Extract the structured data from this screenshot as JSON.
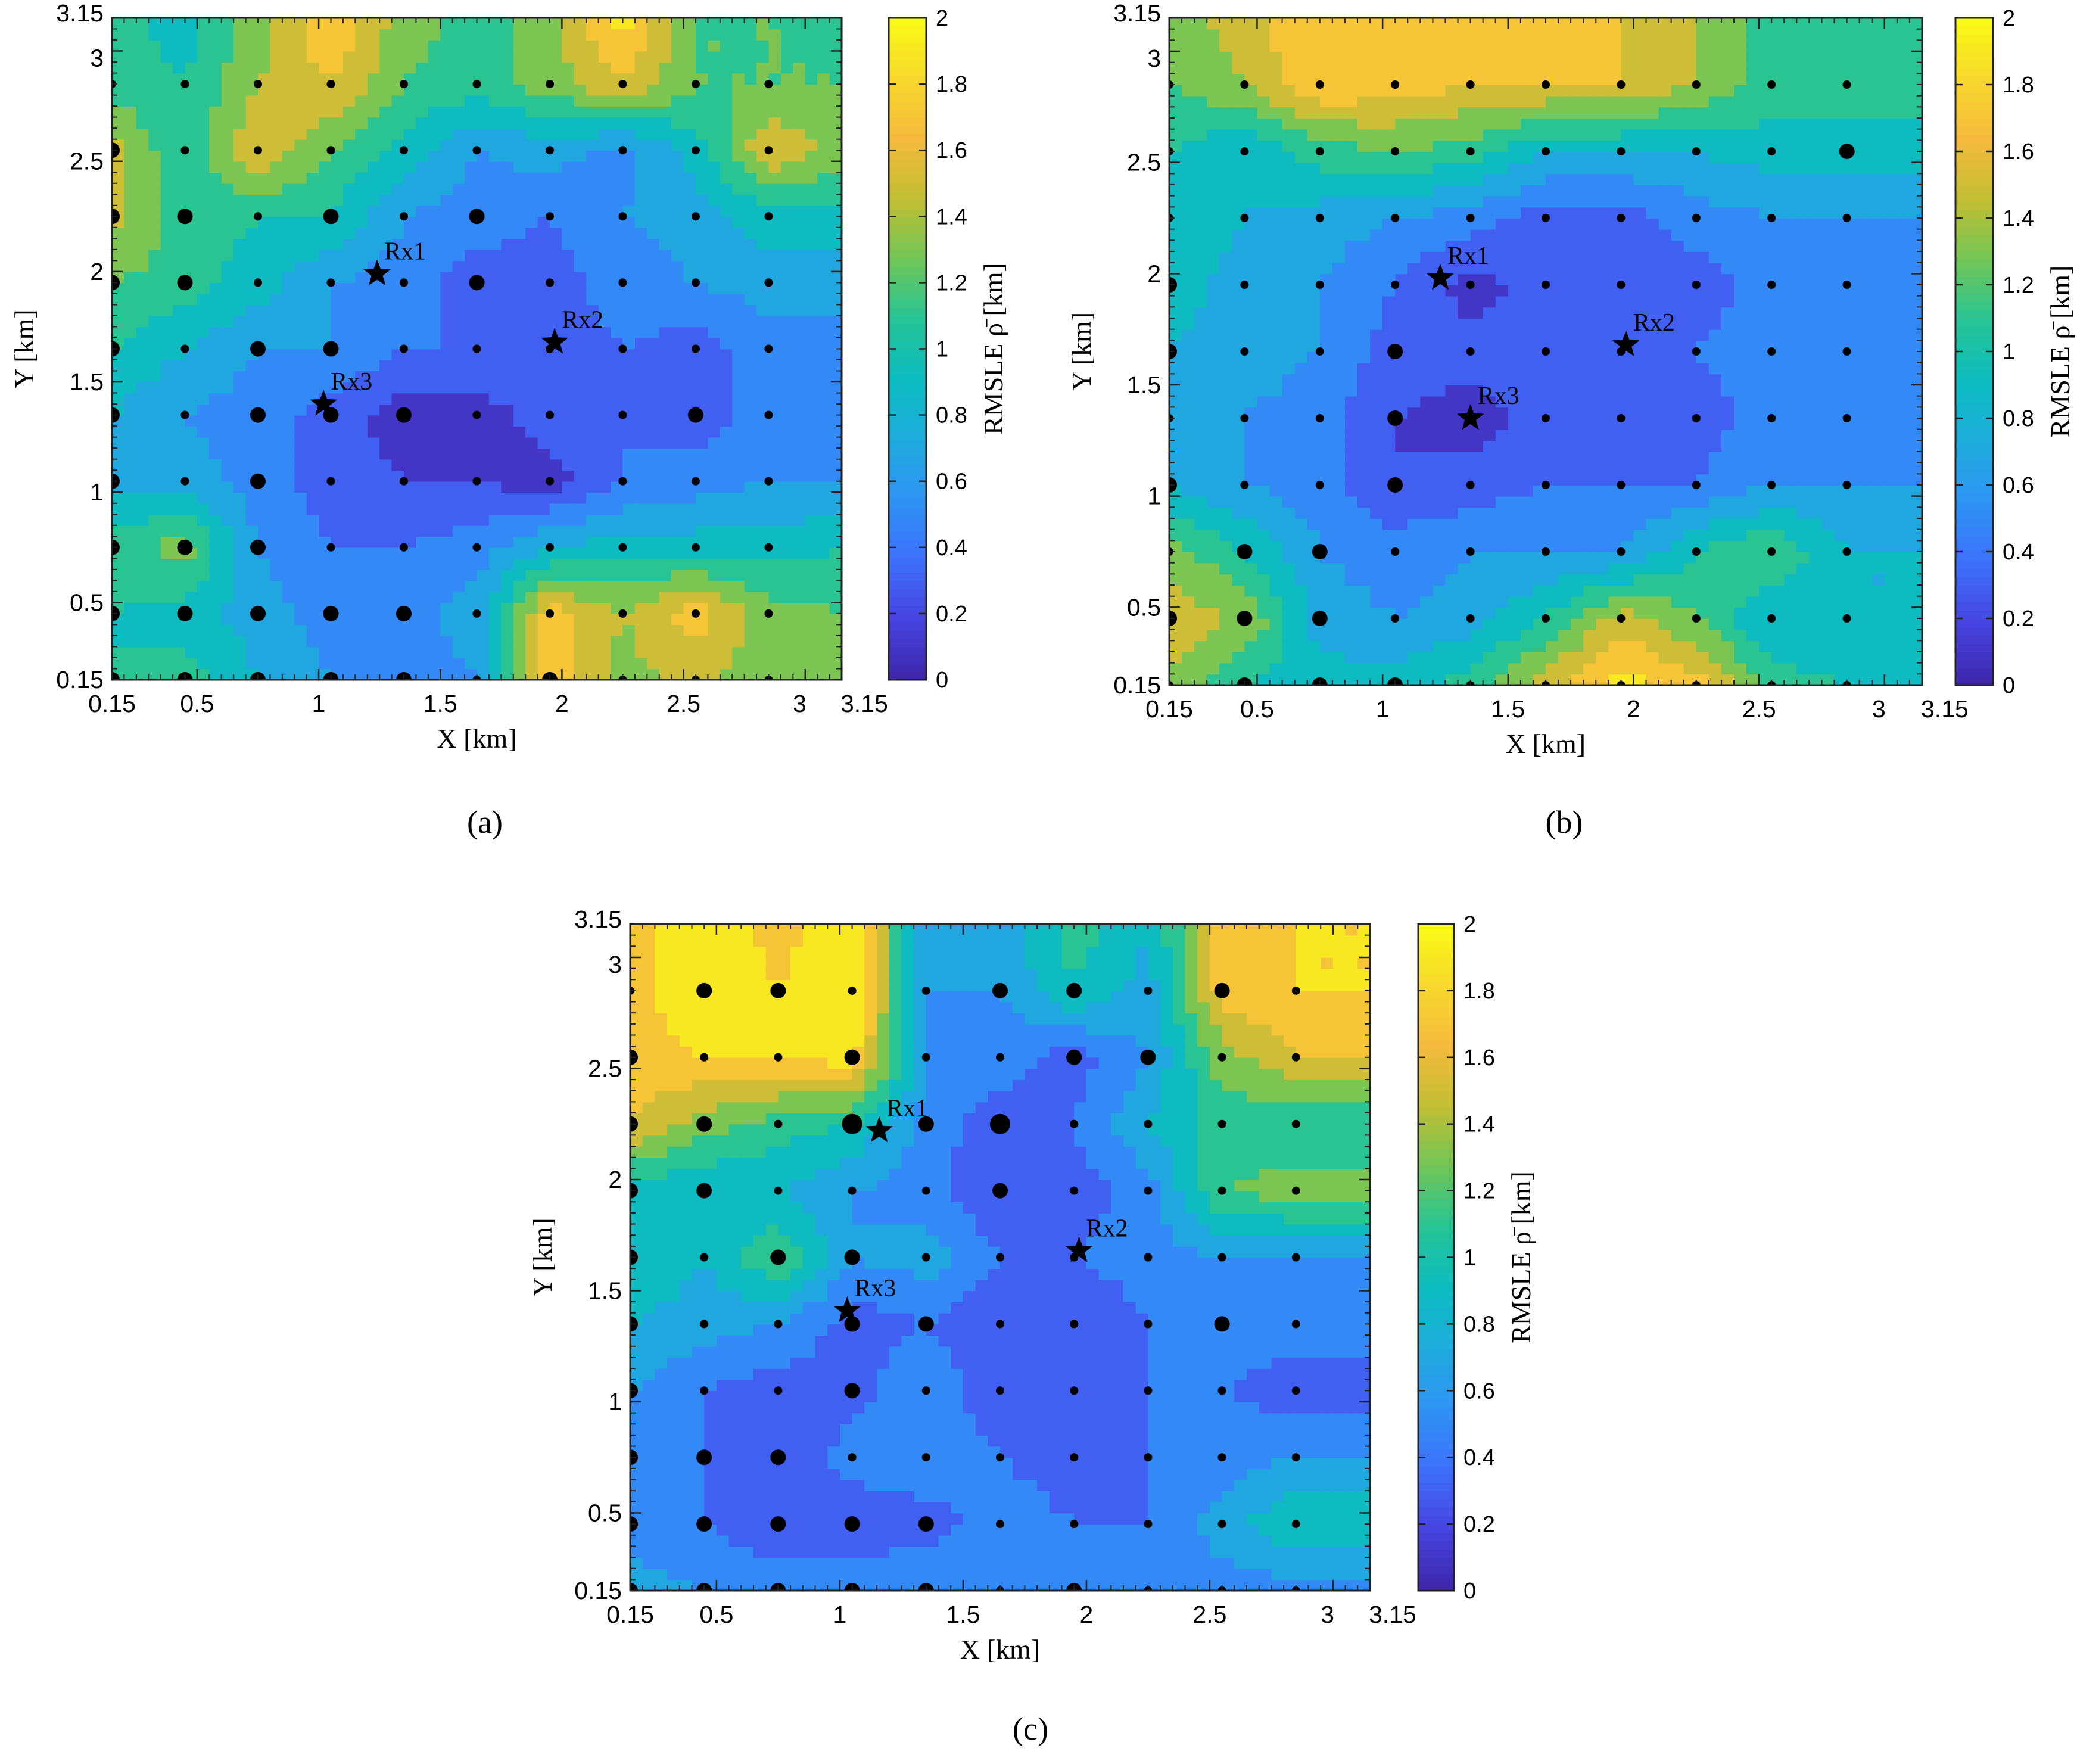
{
  "colormap": [
    "#3e26a8",
    "#4743e0",
    "#3e6ffb",
    "#2f93f4",
    "#1fabdd",
    "#0cbcbf",
    "#26c496",
    "#71c658",
    "#c1be33",
    "#f5ba3d",
    "#f7d82d",
    "#f9fb15"
  ],
  "chart_data": [
    {
      "type": "heatmap",
      "panel_caption": "(a)",
      "xlabel": "X [km]",
      "ylabel": "Y [km]",
      "colorbar_label": "RMSLE ρ̄ [km]",
      "xlim": [
        0.15,
        3.15
      ],
      "ylim": [
        0.15,
        3.15
      ],
      "clim": [
        0,
        2
      ],
      "xticks": [
        0.15,
        0.5,
        1,
        1.5,
        2,
        2.5,
        3,
        3.15
      ],
      "xtick_labels": [
        "0.15",
        "0.5",
        "1",
        "1.5",
        "2",
        "2.5",
        "3",
        "3.15"
      ],
      "yticks": [
        0.15,
        0.5,
        1,
        1.5,
        2,
        2.5,
        3,
        3.15
      ],
      "ytick_labels": [
        "0.15",
        "0.5",
        "1",
        "1.5",
        "2",
        "2.5",
        "3",
        "3.15"
      ],
      "cbar_ticks": [
        0,
        0.2,
        0.4,
        0.6,
        0.8,
        1,
        1.2,
        1.4,
        1.6,
        1.8,
        2
      ],
      "cbar_tick_labels": [
        "0",
        "0.2",
        "0.4",
        "0.6",
        "0.8",
        "1",
        "1.2",
        "1.4",
        "1.6",
        "1.8",
        "2"
      ],
      "grid_x": [
        0.15,
        0.45,
        0.75,
        1.05,
        1.35,
        1.65,
        1.95,
        2.25,
        2.55,
        2.85,
        3.15
      ],
      "grid_y": [
        0.15,
        0.45,
        0.75,
        1.05,
        1.35,
        1.65,
        1.95,
        2.25,
        2.55,
        2.85,
        3.15
      ],
      "values": [
        [
          1.0,
          1.1,
          0.8,
          0.6,
          0.5,
          0.6,
          1.7,
          1.3,
          1.5,
          1.2,
          1.2
        ],
        [
          1.0,
          0.9,
          0.7,
          0.5,
          0.5,
          0.7,
          1.7,
          1.4,
          1.7,
          1.3,
          1.2
        ],
        [
          1.1,
          1.3,
          0.6,
          0.4,
          0.4,
          0.5,
          0.8,
          0.9,
          0.9,
          0.9,
          1.0
        ],
        [
          0.7,
          0.7,
          0.5,
          0.3,
          0.2,
          0.2,
          0.1,
          0.4,
          0.5,
          0.6,
          0.6
        ],
        [
          0.8,
          0.6,
          0.5,
          0.3,
          0.1,
          0.1,
          0.3,
          0.4,
          0.3,
          0.5,
          0.5
        ],
        [
          1.0,
          0.8,
          0.6,
          0.6,
          0.4,
          0.4,
          0.3,
          0.4,
          0.3,
          0.5,
          0.5
        ],
        [
          1.2,
          1.1,
          0.9,
          0.6,
          0.5,
          0.3,
          0.3,
          0.5,
          0.6,
          0.7,
          0.7
        ],
        [
          1.5,
          1.1,
          1.0,
          1.0,
          0.6,
          0.5,
          0.4,
          0.6,
          0.7,
          0.9,
          0.9
        ],
        [
          1.5,
          1.0,
          1.6,
          1.2,
          0.9,
          0.6,
          0.7,
          0.5,
          0.9,
          1.6,
          1.3
        ],
        [
          1.1,
          1.0,
          1.4,
          1.6,
          1.2,
          1.1,
          1.3,
          1.6,
          1.2,
          1.2,
          1.2
        ],
        [
          1.1,
          0.9,
          1.3,
          1.8,
          1.3,
          1.1,
          1.3,
          1.9,
          1.2,
          1.2,
          1.2
        ]
      ],
      "receivers": [
        {
          "label": "Rx1",
          "x": 1.24,
          "y": 1.99
        },
        {
          "label": "Rx2",
          "x": 1.97,
          "y": 1.68
        },
        {
          "label": "Rx3",
          "x": 1.02,
          "y": 1.4
        }
      ],
      "sample_points": {
        "x": [
          0.15,
          0.45,
          0.75,
          1.05,
          1.35,
          1.65,
          1.95,
          2.25,
          2.55,
          2.85
        ],
        "y": [
          0.15,
          0.45,
          0.75,
          1.05,
          1.35,
          1.65,
          1.95,
          2.25,
          2.55,
          2.85
        ],
        "size_class": [
          [
            2,
            2,
            2,
            2,
            2,
            1,
            2,
            1,
            1,
            1
          ],
          [
            2,
            2,
            2,
            2,
            2,
            1,
            1,
            1,
            1,
            1
          ],
          [
            2,
            2,
            2,
            1,
            1,
            1,
            1,
            1,
            1,
            1
          ],
          [
            2,
            1,
            2,
            1,
            1,
            1,
            1,
            1,
            1,
            1
          ],
          [
            2,
            1,
            2,
            2,
            2,
            1,
            1,
            1,
            2,
            1
          ],
          [
            2,
            1,
            2,
            2,
            1,
            1,
            1,
            1,
            1,
            1
          ],
          [
            2,
            2,
            1,
            1,
            1,
            2,
            1,
            1,
            1,
            1
          ],
          [
            2,
            2,
            1,
            2,
            1,
            2,
            1,
            1,
            1,
            1
          ],
          [
            2,
            1,
            1,
            1,
            1,
            1,
            1,
            1,
            1,
            1
          ],
          [
            1,
            1,
            1,
            1,
            1,
            1,
            1,
            1,
            1,
            1
          ]
        ]
      }
    },
    {
      "type": "heatmap",
      "panel_caption": "(b)",
      "xlabel": "X [km]",
      "ylabel": "Y [km]",
      "colorbar_label": "RMSLE ρ̄ [km]",
      "xlim": [
        0.15,
        3.15
      ],
      "ylim": [
        0.15,
        3.15
      ],
      "clim": [
        0,
        2
      ],
      "xticks": [
        0.15,
        0.5,
        1,
        1.5,
        2,
        2.5,
        3,
        3.15
      ],
      "xtick_labels": [
        "0.15",
        "0.5",
        "1",
        "1.5",
        "2",
        "2.5",
        "3",
        "3.15"
      ],
      "yticks": [
        0.15,
        0.5,
        1,
        1.5,
        2,
        2.5,
        3,
        3.15
      ],
      "ytick_labels": [
        "0.15",
        "0.5",
        "1",
        "1.5",
        "2",
        "2.5",
        "3",
        "3.15"
      ],
      "cbar_ticks": [
        0,
        0.2,
        0.4,
        0.6,
        0.8,
        1,
        1.2,
        1.4,
        1.6,
        1.8,
        2
      ],
      "cbar_tick_labels": [
        "0",
        "0.2",
        "0.4",
        "0.6",
        "0.8",
        "1",
        "1.2",
        "1.4",
        "1.6",
        "1.8",
        "2"
      ],
      "grid_x": [
        0.15,
        0.45,
        0.75,
        1.05,
        1.35,
        1.65,
        1.95,
        2.25,
        2.55,
        2.85,
        3.15
      ],
      "grid_y": [
        0.15,
        0.45,
        0.75,
        1.05,
        1.35,
        1.65,
        1.95,
        2.25,
        2.55,
        2.85,
        3.15
      ],
      "values": [
        [
          1.4,
          1.0,
          0.9,
          0.9,
          1.1,
          1.5,
          1.9,
          1.7,
          1.1,
          1.0,
          1.0
        ],
        [
          1.5,
          1.4,
          0.7,
          0.6,
          0.7,
          1.0,
          1.5,
          1.2,
          0.8,
          0.8,
          0.8
        ],
        [
          1.3,
          1.0,
          0.6,
          0.5,
          0.6,
          0.6,
          0.6,
          1.0,
          1.2,
          0.8,
          0.8
        ],
        [
          0.8,
          0.6,
          0.5,
          0.2,
          0.3,
          0.4,
          0.4,
          0.4,
          0.6,
          0.6,
          0.6
        ],
        [
          0.8,
          0.6,
          0.5,
          0.2,
          0.1,
          0.3,
          0.3,
          0.3,
          0.5,
          0.5,
          0.5
        ],
        [
          0.8,
          0.7,
          0.6,
          0.3,
          0.3,
          0.3,
          0.2,
          0.4,
          0.5,
          0.5,
          0.5
        ],
        [
          0.9,
          0.7,
          0.6,
          0.4,
          0.1,
          0.3,
          0.2,
          0.3,
          0.5,
          0.5,
          0.5
        ],
        [
          1.0,
          0.8,
          0.7,
          0.6,
          0.5,
          0.3,
          0.3,
          0.5,
          0.6,
          0.6,
          0.6
        ],
        [
          1.0,
          0.8,
          1.1,
          1.2,
          1.1,
          0.8,
          0.8,
          0.8,
          0.9,
          0.9,
          0.9
        ],
        [
          1.2,
          1.4,
          1.8,
          1.7,
          1.6,
          1.6,
          1.6,
          1.4,
          1.1,
          1.1,
          1.1
        ],
        [
          1.3,
          1.5,
          1.8,
          1.8,
          1.8,
          1.8,
          1.6,
          1.4,
          1.1,
          1.1,
          1.1
        ]
      ],
      "receivers": [
        {
          "label": "Rx1",
          "x": 1.23,
          "y": 1.98
        },
        {
          "label": "Rx2",
          "x": 1.97,
          "y": 1.68
        },
        {
          "label": "Rx3",
          "x": 1.35,
          "y": 1.35
        }
      ],
      "sample_points": {
        "x": [
          0.15,
          0.45,
          0.75,
          1.05,
          1.35,
          1.65,
          1.95,
          2.25,
          2.55,
          2.85
        ],
        "y": [
          0.15,
          0.45,
          0.75,
          1.05,
          1.35,
          1.65,
          1.95,
          2.25,
          2.55,
          2.85
        ],
        "size_class": [
          [
            1,
            2,
            2,
            2,
            1,
            1,
            1,
            1,
            1,
            1
          ],
          [
            2,
            2,
            2,
            1,
            1,
            1,
            1,
            1,
            1,
            1
          ],
          [
            1,
            2,
            2,
            1,
            1,
            1,
            1,
            1,
            1,
            1
          ],
          [
            2,
            1,
            1,
            2,
            1,
            1,
            1,
            1,
            1,
            1
          ],
          [
            1,
            1,
            1,
            2,
            1,
            1,
            1,
            1,
            1,
            1
          ],
          [
            2,
            1,
            1,
            2,
            1,
            1,
            1,
            1,
            1,
            1
          ],
          [
            2,
            1,
            1,
            1,
            1,
            1,
            1,
            1,
            1,
            1
          ],
          [
            1,
            1,
            1,
            1,
            1,
            1,
            1,
            1,
            1,
            1
          ],
          [
            1,
            1,
            1,
            1,
            1,
            1,
            1,
            1,
            1,
            2
          ],
          [
            1,
            1,
            1,
            1,
            1,
            1,
            1,
            1,
            1,
            1
          ]
        ]
      }
    },
    {
      "type": "heatmap",
      "panel_caption": "(c)",
      "xlabel": "X [km]",
      "ylabel": "Y [km]",
      "colorbar_label": "RMSLE ρ̄ [km]",
      "xlim": [
        0.15,
        3.15
      ],
      "ylim": [
        0.15,
        3.15
      ],
      "clim": [
        0,
        2
      ],
      "xticks": [
        0.15,
        0.5,
        1,
        1.5,
        2,
        2.5,
        3,
        3.15
      ],
      "xtick_labels": [
        "0.15",
        "0.5",
        "1",
        "1.5",
        "2",
        "2.5",
        "3",
        "3.15"
      ],
      "yticks": [
        0.15,
        0.5,
        1,
        1.5,
        2,
        2.5,
        3,
        3.15
      ],
      "ytick_labels": [
        "0.15",
        "0.5",
        "1",
        "1.5",
        "2",
        "2.5",
        "3",
        "3.15"
      ],
      "cbar_ticks": [
        0,
        0.2,
        0.4,
        0.6,
        0.8,
        1,
        1.2,
        1.4,
        1.6,
        1.8,
        2
      ],
      "cbar_tick_labels": [
        "0",
        "0.2",
        "0.4",
        "0.6",
        "0.8",
        "1",
        "1.2",
        "1.4",
        "1.6",
        "1.8",
        "2"
      ],
      "grid_x": [
        0.15,
        0.45,
        0.75,
        1.05,
        1.35,
        1.65,
        1.95,
        2.25,
        2.55,
        2.85,
        3.15
      ],
      "grid_y": [
        0.15,
        0.45,
        0.75,
        1.05,
        1.35,
        1.65,
        1.95,
        2.25,
        2.55,
        2.85,
        3.15
      ],
      "values": [
        [
          0.7,
          0.6,
          0.6,
          0.6,
          0.6,
          0.6,
          0.4,
          0.6,
          0.5,
          0.5,
          0.5
        ],
        [
          0.5,
          0.4,
          0.2,
          0.2,
          0.3,
          0.5,
          0.4,
          0.4,
          0.7,
          1.0,
          1.0
        ],
        [
          0.5,
          0.4,
          0.2,
          0.5,
          0.6,
          0.4,
          0.3,
          0.4,
          0.5,
          0.6,
          0.6
        ],
        [
          0.6,
          0.4,
          0.3,
          0.3,
          0.6,
          0.2,
          0.3,
          0.4,
          0.4,
          0.3,
          0.3
        ],
        [
          0.8,
          0.7,
          0.6,
          0.3,
          0.4,
          0.2,
          0.2,
          0.4,
          0.5,
          0.5,
          0.5
        ],
        [
          1.0,
          0.8,
          1.2,
          0.6,
          0.7,
          0.4,
          0.4,
          0.5,
          0.6,
          0.6,
          0.6
        ],
        [
          0.9,
          0.8,
          0.8,
          0.6,
          0.5,
          0.2,
          0.3,
          0.5,
          1.2,
          1.3,
          1.3
        ],
        [
          1.6,
          1.3,
          1.1,
          1.0,
          0.5,
          0.3,
          0.4,
          0.8,
          1.1,
          1.0,
          1.0
        ],
        [
          1.7,
          1.8,
          1.8,
          1.9,
          0.6,
          0.5,
          0.3,
          0.6,
          1.3,
          1.6,
          1.6
        ],
        [
          1.7,
          2.0,
          1.8,
          2.0,
          0.6,
          0.6,
          1.0,
          0.7,
          1.7,
          1.8,
          1.8
        ],
        [
          1.7,
          2.0,
          1.7,
          2.0,
          0.6,
          0.7,
          1.1,
          0.8,
          1.7,
          1.8,
          1.8
        ]
      ],
      "receivers": [
        {
          "label": "Rx1",
          "x": 1.16,
          "y": 2.22
        },
        {
          "label": "Rx2",
          "x": 1.97,
          "y": 1.68
        },
        {
          "label": "Rx3",
          "x": 1.03,
          "y": 1.41
        }
      ],
      "sample_points": {
        "x": [
          0.15,
          0.45,
          0.75,
          1.05,
          1.35,
          1.65,
          1.95,
          2.25,
          2.55,
          2.85
        ],
        "y": [
          0.15,
          0.45,
          0.75,
          1.05,
          1.35,
          1.65,
          1.95,
          2.25,
          2.55,
          2.85
        ],
        "size_class": [
          [
            2,
            2,
            2,
            2,
            2,
            1,
            2,
            1,
            1,
            1
          ],
          [
            2,
            2,
            2,
            2,
            2,
            1,
            1,
            1,
            1,
            1
          ],
          [
            2,
            2,
            2,
            1,
            1,
            1,
            1,
            1,
            1,
            1
          ],
          [
            2,
            1,
            1,
            2,
            1,
            1,
            1,
            1,
            1,
            1
          ],
          [
            2,
            1,
            1,
            2,
            2,
            1,
            1,
            1,
            2,
            1
          ],
          [
            2,
            1,
            2,
            2,
            1,
            1,
            1,
            1,
            1,
            1
          ],
          [
            2,
            2,
            1,
            1,
            1,
            2,
            1,
            1,
            1,
            1
          ],
          [
            2,
            2,
            1,
            3,
            2,
            3,
            1,
            1,
            1,
            1
          ],
          [
            2,
            1,
            1,
            2,
            1,
            1,
            2,
            2,
            1,
            1
          ],
          [
            1,
            2,
            2,
            1,
            1,
            2,
            2,
            1,
            2,
            1
          ]
        ]
      }
    }
  ]
}
